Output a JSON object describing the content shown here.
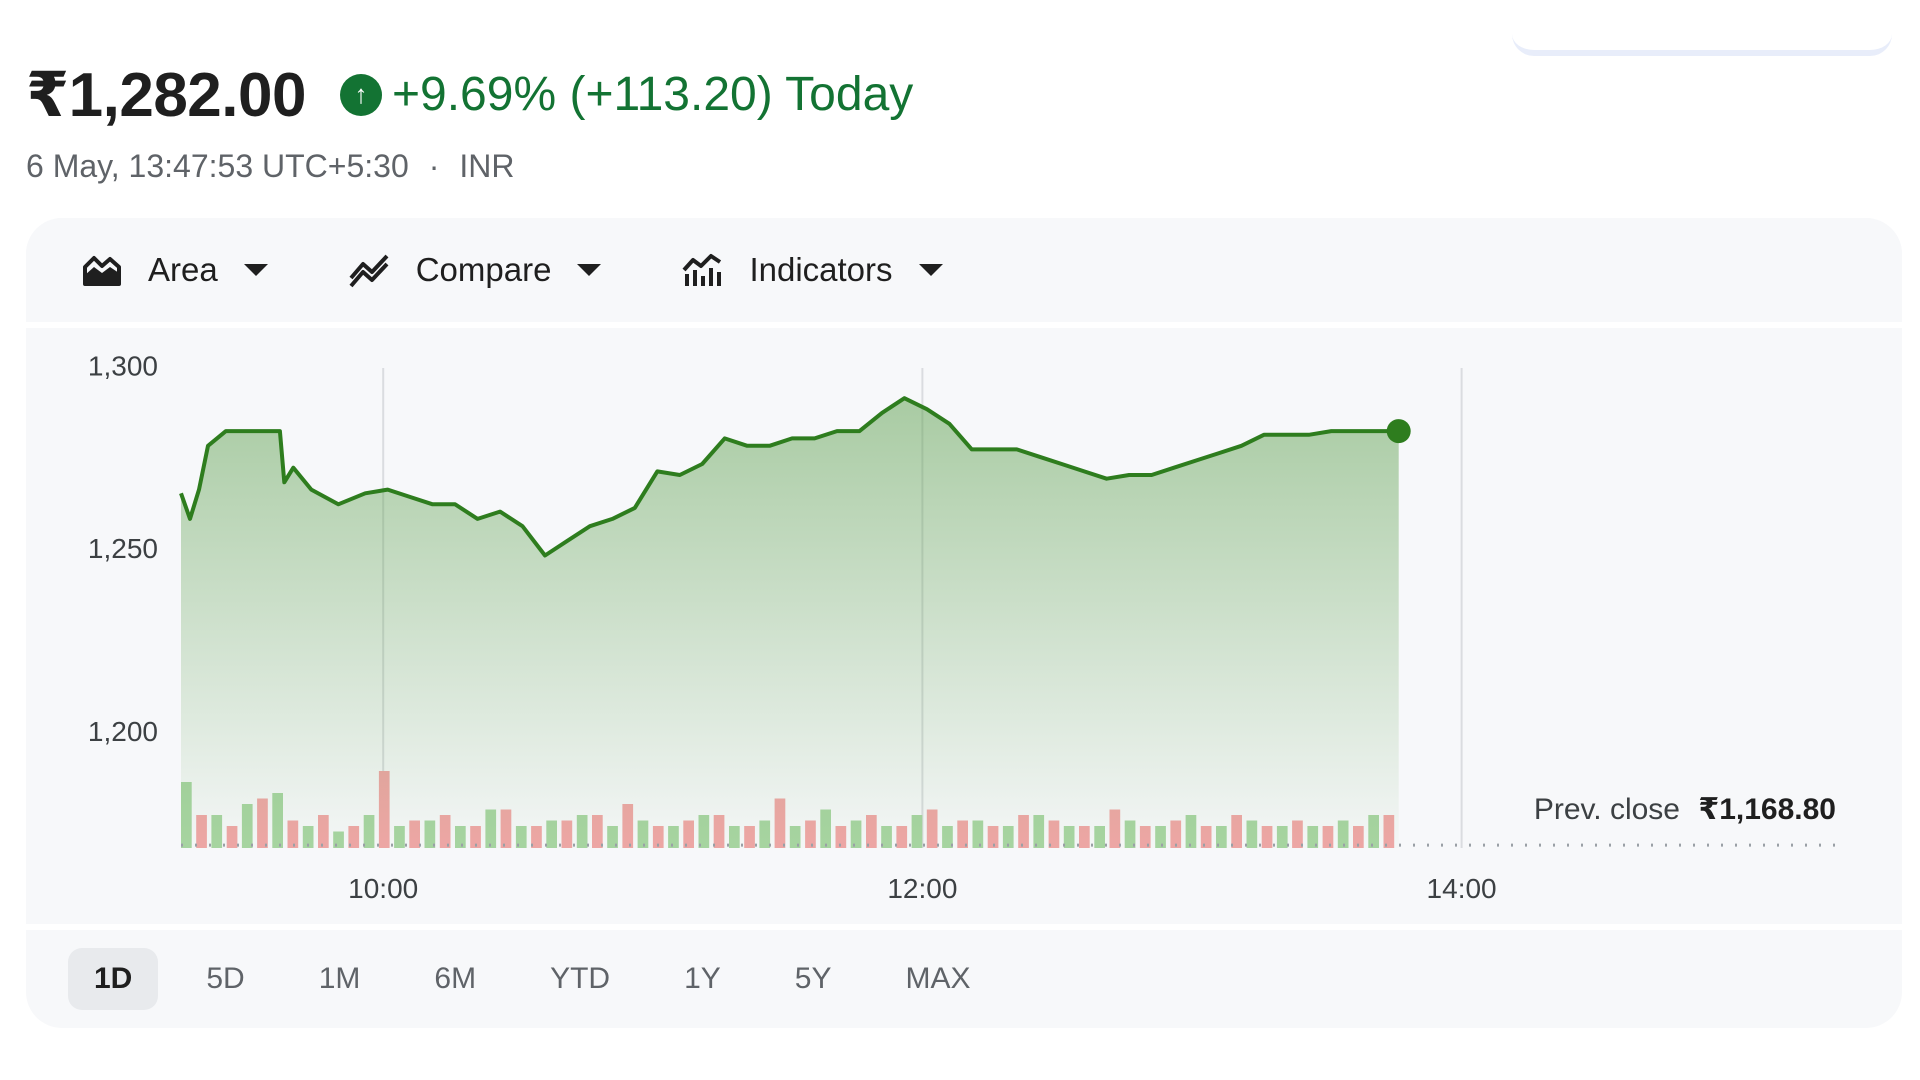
{
  "header": {
    "price": "₹1,282.00",
    "change_text": "+9.69% (+113.20) Today",
    "timestamp": "6 May, 13:47:53 UTC+5:30",
    "separator": "·",
    "currency": "INR"
  },
  "toolbar": {
    "area_label": "Area",
    "compare_label": "Compare",
    "indicators_label": "Indicators"
  },
  "ranges": [
    {
      "label": "1D",
      "active": true
    },
    {
      "label": "5D",
      "active": false
    },
    {
      "label": "1M",
      "active": false
    },
    {
      "label": "6M",
      "active": false
    },
    {
      "label": "YTD",
      "active": false
    },
    {
      "label": "1Y",
      "active": false
    },
    {
      "label": "5Y",
      "active": false
    },
    {
      "label": "MAX",
      "active": false
    }
  ],
  "colors": {
    "up": "#137333",
    "line": "#2e7d1e",
    "vol_up": "#a8d5a2",
    "vol_down": "#f0a6a6"
  },
  "chart_data": {
    "type": "area",
    "y_ticks": [
      1300,
      1250,
      1200
    ],
    "y_tick_labels": [
      "1,300",
      "1,250",
      "1,200"
    ],
    "ylim": [
      1168,
      1302
    ],
    "x_tick_labels": [
      "10:00",
      "12:00",
      "14:00"
    ],
    "x_ticks_minutes": [
      600,
      720,
      840
    ],
    "xlim_minutes": [
      555,
      930
    ],
    "prev_close": 1168.8,
    "prev_close_label": "Prev. close",
    "prev_close_value": "₹1,168.80",
    "last_price": 1282,
    "x_minutes": [
      555,
      557,
      559,
      561,
      565,
      569,
      573,
      577,
      578,
      580,
      584,
      590,
      596,
      601,
      606,
      611,
      616,
      621,
      626,
      631,
      636,
      641,
      646,
      651,
      656,
      661,
      666,
      671,
      676,
      681,
      686,
      691,
      696,
      701,
      706,
      711,
      716,
      721,
      726,
      731,
      736,
      741,
      746,
      751,
      756,
      761,
      766,
      771,
      776,
      781,
      786,
      791,
      796,
      801,
      806,
      811,
      816,
      821,
      826
    ],
    "y_values": [
      1265,
      1258,
      1266,
      1278,
      1282,
      1282,
      1282,
      1282,
      1268,
      1272,
      1266,
      1262,
      1265,
      1266,
      1264,
      1262,
      1262,
      1258,
      1260,
      1256,
      1248,
      1252,
      1256,
      1258,
      1261,
      1271,
      1270,
      1273,
      1280,
      1278,
      1278,
      1280,
      1280,
      1282,
      1282,
      1287,
      1291,
      1288,
      1284,
      1277,
      1277,
      1277,
      1275,
      1273,
      1271,
      1269,
      1270,
      1270,
      1272,
      1274,
      1276,
      1278,
      1281,
      1281,
      1281,
      1282,
      1282,
      1282,
      1282
    ],
    "volume_up": [
      0.6,
      0.3,
      0.4,
      0.5,
      0.2,
      0.15,
      0.3,
      0.2,
      0.25,
      0.2,
      0.35,
      0.2,
      0.25,
      0.3,
      0.2,
      0.25,
      0.2,
      0.3,
      0.2,
      0.25,
      0.2,
      0.35,
      0.25,
      0.2,
      0.3,
      0.2,
      0.25,
      0.2,
      0.3,
      0.2,
      0.2,
      0.25,
      0.2,
      0.3,
      0.2,
      0.25,
      0.2,
      0.2,
      0.25,
      0.3
    ],
    "volume_down": [
      0.3,
      0.2,
      0.45,
      0.25,
      0.3,
      0.2,
      0.7,
      0.25,
      0.3,
      0.2,
      0.35,
      0.2,
      0.25,
      0.3,
      0.4,
      0.2,
      0.25,
      0.3,
      0.2,
      0.45,
      0.25,
      0.2,
      0.3,
      0.2,
      0.35,
      0.25,
      0.2,
      0.3,
      0.25,
      0.2,
      0.35,
      0.2,
      0.25,
      0.2,
      0.3,
      0.2,
      0.25,
      0.2,
      0.2,
      0.3
    ]
  }
}
